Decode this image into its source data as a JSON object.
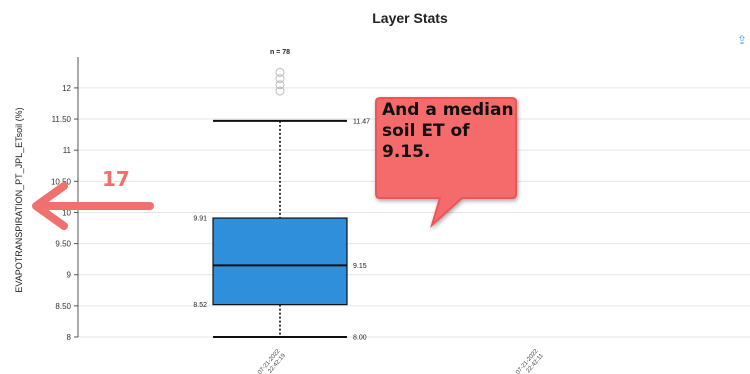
{
  "header": {
    "title": "Layer Stats",
    "export_icon": "export-icon"
  },
  "chart_data": {
    "type": "box",
    "n_label": "n = 78",
    "ylabel": "EVAPOTRANSPIRATION_PT_JPL_ETsoil (%)",
    "xlabel": "",
    "ylim": [
      8,
      12.4
    ],
    "y_ticks": [
      8,
      8.5,
      9,
      9.5,
      10,
      10.5,
      11,
      11.5,
      12
    ],
    "y_tick_labels": [
      "8",
      "8.50",
      "9",
      "9.50",
      "10",
      "10.50",
      "11",
      "11.50",
      "12"
    ],
    "grid": true,
    "categories": [
      "07-21-2022 22:42:19",
      "07-21-2022 22:42:11"
    ],
    "boxes": [
      {
        "category": "07-21-2022 22:42:19",
        "min": 8.0,
        "q1": 8.52,
        "median": 9.15,
        "q3": 9.91,
        "max": 11.47,
        "min_label": "8.00",
        "q1_label": "8.52",
        "median_label": "9.15",
        "q3_label": "9.91",
        "max_label": "11.47",
        "outliers": [
          12.25,
          12.15,
          12.05,
          11.95
        ],
        "color": "#2f8fdb"
      }
    ]
  },
  "annotations": {
    "callout_text": "And a median soil ET of 9.15.",
    "callout_color": "#f56b6b",
    "arrow_label": "17",
    "arrow_color": "#f07070"
  }
}
